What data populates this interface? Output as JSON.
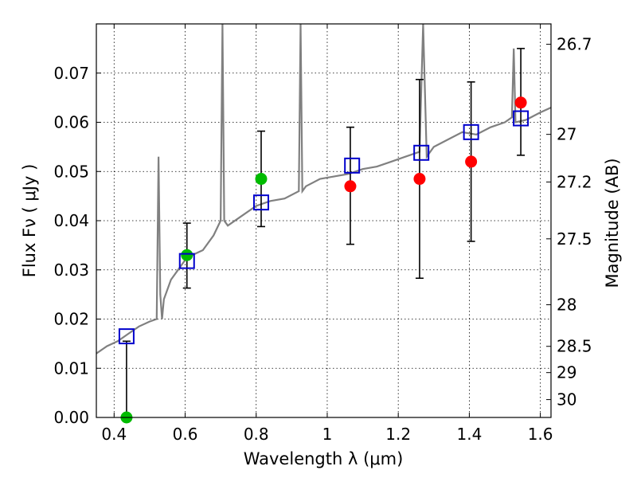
{
  "chart_data": {
    "type": "scatter",
    "xlabel": "Wavelength  λ (μm)",
    "ylabel": "Flux  Fν  ( μJy )",
    "ylabel_right": "Magnitude (AB)",
    "xlim": [
      0.35,
      1.63
    ],
    "ylim": [
      0.0,
      0.08
    ],
    "x_ticks": [
      0.4,
      0.6,
      0.8,
      1.0,
      1.2,
      1.4,
      1.6
    ],
    "x_tick_labels": [
      "0.4",
      "0.6",
      "0.8",
      "1",
      "1.2",
      "1.4",
      "1.6"
    ],
    "y_ticks": [
      0.0,
      0.01,
      0.02,
      0.03,
      0.04,
      0.05,
      0.06,
      0.07
    ],
    "y_tick_labels": [
      "0.00",
      "0.01",
      "0.02",
      "0.03",
      "0.04",
      "0.05",
      "0.06",
      "0.07"
    ],
    "right_ticks": [
      {
        "mag": 26.7,
        "label": "26.7"
      },
      {
        "mag": 27,
        "label": "27"
      },
      {
        "mag": 27.2,
        "label": "27.2"
      },
      {
        "mag": 27.5,
        "label": "27.5"
      },
      {
        "mag": 28,
        "label": "28"
      },
      {
        "mag": 28.5,
        "label": "28.5"
      },
      {
        "mag": 29,
        "label": "29"
      },
      {
        "mag": 30,
        "label": "30"
      }
    ],
    "grid": true,
    "colors": {
      "spectrum": "#808080",
      "detections": "#ff0000",
      "upper_points": "#00bb00",
      "model_boxes": "#0000cc",
      "errorbars": "#000000"
    },
    "spectrum": {
      "x": [
        0.35,
        0.38,
        0.41,
        0.44,
        0.47,
        0.5,
        0.52,
        0.525,
        0.53,
        0.535,
        0.54,
        0.56,
        0.58,
        0.6,
        0.62,
        0.65,
        0.68,
        0.7,
        0.705,
        0.71,
        0.72,
        0.76,
        0.8,
        0.84,
        0.88,
        0.92,
        0.925,
        0.93,
        0.94,
        0.98,
        1.02,
        1.06,
        1.1,
        1.14,
        1.18,
        1.22,
        1.26,
        1.27,
        1.28,
        1.3,
        1.34,
        1.38,
        1.42,
        1.46,
        1.5,
        1.52,
        1.525,
        1.53,
        1.56,
        1.6,
        1.63
      ],
      "y": [
        0.013,
        0.0145,
        0.0155,
        0.017,
        0.0185,
        0.0195,
        0.02,
        0.053,
        0.025,
        0.02,
        0.024,
        0.028,
        0.03,
        0.032,
        0.033,
        0.034,
        0.037,
        0.04,
        0.08,
        0.04,
        0.039,
        0.041,
        0.043,
        0.044,
        0.0445,
        0.046,
        0.08,
        0.046,
        0.047,
        0.0485,
        0.049,
        0.0495,
        0.0505,
        0.051,
        0.052,
        0.053,
        0.054,
        0.08,
        0.053,
        0.055,
        0.0565,
        0.058,
        0.0575,
        0.059,
        0.06,
        0.061,
        0.075,
        0.06,
        0.0605,
        0.062,
        0.063
      ]
    },
    "series": [
      {
        "marker": "circle",
        "color": "#ff0000",
        "points": [
          {
            "x": 1.065,
            "y": 0.047,
            "err_low": 0.0352,
            "err_high": 0.059
          },
          {
            "x": 1.26,
            "y": 0.0485,
            "err_low": 0.0283,
            "err_high": 0.0687
          },
          {
            "x": 1.405,
            "y": 0.052,
            "err_low": 0.0358,
            "err_high": 0.0682
          },
          {
            "x": 1.545,
            "y": 0.064,
            "err_low": 0.0533,
            "err_high": 0.075
          }
        ]
      },
      {
        "marker": "circle",
        "color": "#00bb00",
        "points": [
          {
            "x": 0.435,
            "y": 0.0,
            "err_low": 0.0,
            "err_high": 0.0155
          },
          {
            "x": 0.605,
            "y": 0.033,
            "err_low": 0.0263,
            "err_high": 0.0395
          },
          {
            "x": 0.814,
            "y": 0.0485,
            "err_low": 0.0388,
            "err_high": 0.0582
          }
        ]
      },
      {
        "marker": "square",
        "color": "#0000cc",
        "points": [
          {
            "x": 0.435,
            "y": 0.0165
          },
          {
            "x": 0.605,
            "y": 0.0318
          },
          {
            "x": 0.814,
            "y": 0.0437
          },
          {
            "x": 1.07,
            "y": 0.0512
          },
          {
            "x": 1.265,
            "y": 0.0538
          },
          {
            "x": 1.405,
            "y": 0.058
          },
          {
            "x": 1.545,
            "y": 0.0608
          }
        ]
      }
    ]
  }
}
